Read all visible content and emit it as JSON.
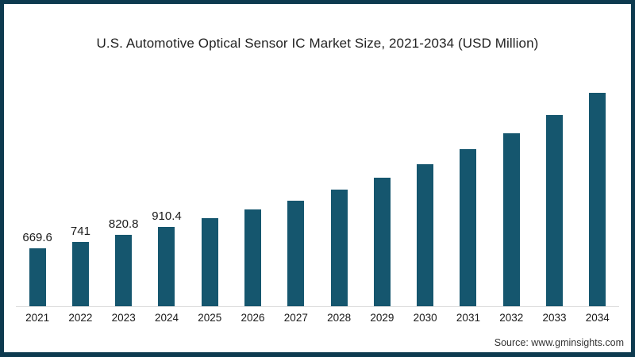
{
  "frame": {
    "border_color": "#0d3a4f",
    "background_color": "#ffffff"
  },
  "title": "U.S. Automotive Optical Sensor IC Market Size, 2021-2034 (USD Million)",
  "source_credit": "Source: www.gminsights.com",
  "chart_data": {
    "type": "bar",
    "title": "U.S. Automotive Optical Sensor IC Market Size, 2021-2034 (USD Million)",
    "xlabel": "",
    "ylabel": "USD Million",
    "categories": [
      "2021",
      "2022",
      "2023",
      "2024",
      "2025",
      "2026",
      "2027",
      "2028",
      "2029",
      "2030",
      "2031",
      "2032",
      "2033",
      "2034"
    ],
    "values": [
      669.6,
      741,
      820.8,
      910.4,
      1010,
      1111,
      1212,
      1340,
      1478,
      1634,
      1808,
      1992,
      2203,
      2451
    ],
    "data_labels": [
      "669.6",
      "741",
      "820.8",
      "910.4",
      "",
      "",
      "",
      "",
      "",
      "",
      "",
      "",
      "",
      ""
    ],
    "ylim": [
      0,
      2600
    ],
    "grid": false,
    "legend_position": "none",
    "bar_color": "#15566e",
    "baseline_color": "#dddddd"
  }
}
